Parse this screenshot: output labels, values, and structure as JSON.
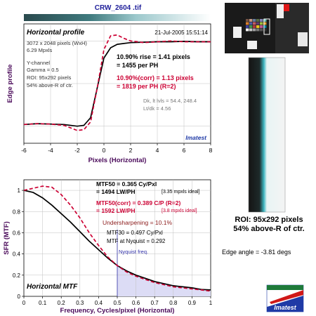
{
  "file_title": "CRW_2604   .tif",
  "roi_caption": [
    "ROI: 95x292 pixels",
    "54% above-R of ctr."
  ],
  "edge_angle": "Edge angle = -3.81 degs",
  "logo_text": "Imatest",
  "colors": {
    "plot_bg": "#ffffff",
    "grid": "#c0c0c0",
    "black_curve": "#000000",
    "red_curve": "#cc0033",
    "axis_text": "#000000",
    "nyquist_fill": "#dcdcf5",
    "nyquist_text": "#3333aa",
    "imatest_blue": "#1f3aa6",
    "ylabel_purple": "#4a0a5a"
  },
  "chart_data": [
    {
      "type": "line",
      "title": "Horizontal profile",
      "date": "21-Jul-2005 15:51:14",
      "xlabel": "Pixels (Horizontal)",
      "ylabel": "Edge profile",
      "xlim": [
        -6,
        8
      ],
      "xticks": [
        "-6",
        "-4",
        "-2",
        "0",
        "2",
        "4",
        "6",
        "8"
      ],
      "grid": true,
      "info_left": [
        "3072 x 2048 pixels (WxH)",
        "6.29 Mpxls",
        "",
        "Y-channel",
        "Gamma = 0.5",
        "ROI: 95x292 pixels",
        "54% above-R of ctr."
      ],
      "rise_text": [
        "10.90% rise = 1.41 pixels",
        "= 1455 per PH"
      ],
      "corr_text": [
        "10.90%(corr) = 1.13 pixels",
        "= 1819 per PH   (R=2)"
      ],
      "levels_text": [
        "Dk, lt lvls = 54.4, 248.4",
        "Lt/dk = 4.56"
      ],
      "brand": "Imatest",
      "series": [
        {
          "color": "black",
          "x": [
            -6,
            -5,
            -4,
            -3,
            -2,
            -1.5,
            -1,
            -0.5,
            0,
            0.5,
            1,
            1.5,
            2,
            3,
            4,
            5,
            6,
            7,
            8
          ],
          "y": [
            0.02,
            0.03,
            0.025,
            0.02,
            0.0,
            0.01,
            0.1,
            0.45,
            0.8,
            0.92,
            0.96,
            0.97,
            0.98,
            0.985,
            0.99,
            0.99,
            0.995,
            0.99,
            0.99
          ]
        },
        {
          "color": "red",
          "x": [
            -6,
            -5,
            -4,
            -3,
            -2.5,
            -2,
            -1.5,
            -1,
            -0.5,
            0,
            0.5,
            1,
            1.5,
            2,
            3,
            4,
            5,
            6,
            7,
            8
          ],
          "y": [
            0.02,
            0.03,
            0.025,
            0.01,
            -0.02,
            -0.05,
            -0.04,
            0.05,
            0.45,
            0.9,
            1.06,
            1.07,
            1.03,
            1.0,
            0.98,
            0.99,
            1.0,
            0.99,
            0.99,
            0.99
          ]
        }
      ]
    },
    {
      "type": "line",
      "title": "Horizontal MTF",
      "xlabel": "Frequency, Cycles/pixel (Horizontal)",
      "ylabel": "SFR (MTF)",
      "xlim": [
        0,
        1
      ],
      "ylim": [
        0,
        1
      ],
      "xticks": [
        "0",
        "0.1",
        "0.2",
        "0.3",
        "0.4",
        "0.5",
        "0.6",
        "0.7",
        "0.8",
        "0.9",
        "1"
      ],
      "yticks": [
        "0",
        "0.2",
        "0.4",
        "0.6",
        "0.8",
        "1"
      ],
      "grid": true,
      "nyquist_label": "Nyquist freq.",
      "nyquist_x": 0.5,
      "mtf50_text": [
        "MTF50 = 0.365 Cy/Pxl",
        "= 1494 LW/PH"
      ],
      "mtf50_note": "[3.35 mpxls ideal]",
      "mtf50corr_text": [
        "MTF50(corr) = 0.389 C/P  (R=2)",
        "= 1592 LW/PH"
      ],
      "mtf50corr_note": "[3.8 mpxls ideal]",
      "undersharpening": "Undersharpening = 10.1%",
      "mtf30_text": [
        "MTF30 = 0.497 Cy/Pxl",
        "MTF at Nyquist = 0.292"
      ],
      "series": [
        {
          "color": "black",
          "x": [
            0,
            0.05,
            0.1,
            0.15,
            0.2,
            0.25,
            0.3,
            0.35,
            0.4,
            0.45,
            0.5,
            0.55,
            0.6,
            0.65,
            0.7,
            0.75,
            0.8,
            0.85,
            0.9,
            0.95,
            1.0
          ],
          "y": [
            1.0,
            0.98,
            0.93,
            0.86,
            0.78,
            0.7,
            0.61,
            0.52,
            0.44,
            0.36,
            0.29,
            0.24,
            0.2,
            0.17,
            0.14,
            0.12,
            0.1,
            0.09,
            0.08,
            0.065,
            0.06
          ]
        },
        {
          "color": "red",
          "x": [
            0,
            0.05,
            0.1,
            0.15,
            0.2,
            0.25,
            0.3,
            0.35,
            0.4,
            0.45,
            0.5,
            0.55,
            0.6,
            0.65,
            0.7,
            0.75,
            0.8,
            0.85,
            0.9,
            0.95,
            1.0
          ],
          "y": [
            1.0,
            1.02,
            1.04,
            1.03,
            0.96,
            0.86,
            0.74,
            0.6,
            0.48,
            0.37,
            0.29,
            0.23,
            0.19,
            0.16,
            0.13,
            0.11,
            0.09,
            0.08,
            0.07,
            0.06,
            0.05
          ]
        }
      ]
    }
  ]
}
